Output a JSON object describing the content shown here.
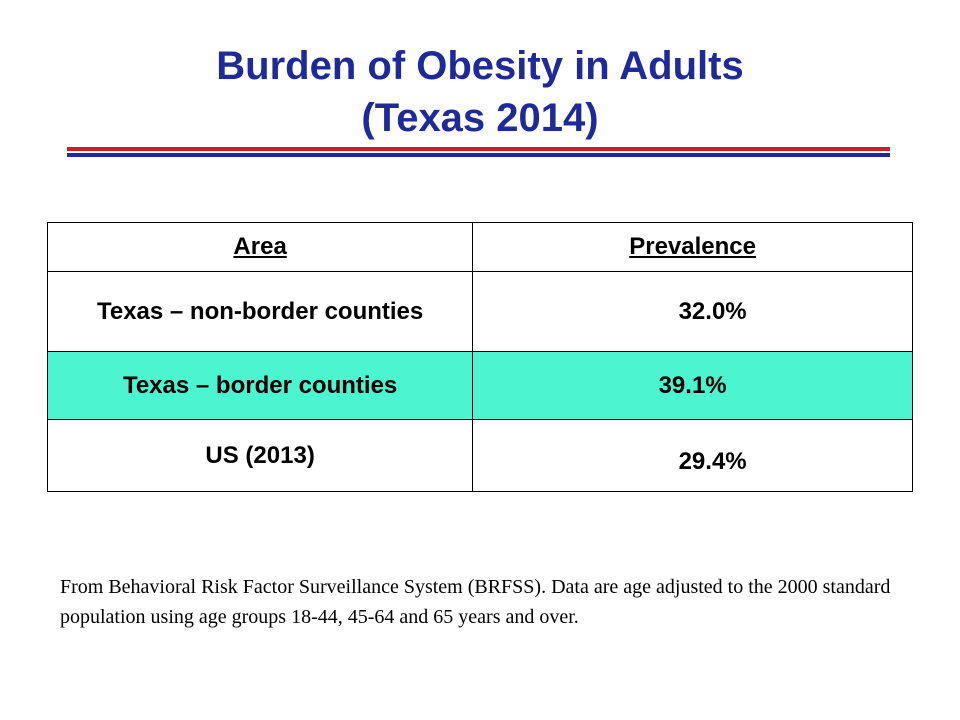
{
  "title": {
    "line1": "Burden of Obesity in Adults",
    "line2": "(Texas 2014)"
  },
  "table": {
    "headers": [
      "Area",
      "Prevalence"
    ],
    "rows": [
      {
        "area": "Texas – non-border counties",
        "prevalence": "32.0%"
      },
      {
        "area": "Texas – border counties",
        "prevalence": "39.1%"
      },
      {
        "area": "US (2013)",
        "prevalence": "29.4%"
      }
    ]
  },
  "footnote": "From Behavioral Risk Factor Surveillance System (BRFSS).  Data are age adjusted to the 2000 standard population using age groups 18-44,  45-64 and 65 years and over.",
  "colors": {
    "title": "#1f2a9a",
    "rule_red": "#d11a2a",
    "rule_blue": "#1f2a9a",
    "highlight_row": "#4cf5cf"
  }
}
